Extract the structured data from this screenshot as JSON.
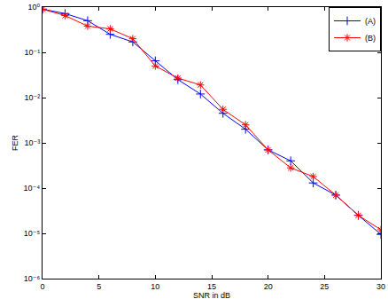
{
  "chart_data": {
    "type": "line",
    "x_label": "SNR in dB",
    "y_label": "FER",
    "log": "y",
    "grid": false,
    "legend": "top-right",
    "xlim": [
      0,
      30
    ],
    "xticks": [
      0,
      5,
      10,
      15,
      20,
      25,
      30
    ],
    "ylim": [
      1e-06,
      1
    ],
    "yticks": [
      {
        "value": 1e-06,
        "label": "10⁻⁶"
      },
      {
        "value": 1e-05,
        "label": "10⁻⁵"
      },
      {
        "value": 0.0001,
        "label": "10⁻⁴"
      },
      {
        "value": 0.001,
        "label": "10⁻³"
      },
      {
        "value": 0.01,
        "label": "10⁻²"
      },
      {
        "value": 0.1,
        "label": "10⁻¹"
      },
      {
        "value": 1,
        "label": "10⁰"
      }
    ],
    "x": [
      0,
      2,
      4,
      6,
      8,
      10,
      12,
      14,
      16,
      18,
      20,
      22,
      24,
      26,
      28,
      30
    ],
    "series": [
      {
        "name": "(A)",
        "color": "#0000ff",
        "marker": "plus",
        "line_style": "solid",
        "values": [
          0.9,
          0.72,
          0.5,
          0.25,
          0.17,
          0.065,
          0.025,
          0.012,
          0.0045,
          0.002,
          0.0007,
          0.0004,
          0.00013,
          7e-05,
          2.5e-05,
          9.5e-06
        ]
      },
      {
        "name": "(B)",
        "color": "#ff0000",
        "marker": "asterisk",
        "line_style": "solid",
        "values": [
          0.9,
          0.65,
          0.38,
          0.33,
          0.2,
          0.05,
          0.027,
          0.019,
          0.0055,
          0.0025,
          0.0007,
          0.00028,
          0.00018,
          7e-05,
          2.5e-05,
          1.2e-05
        ]
      }
    ]
  }
}
